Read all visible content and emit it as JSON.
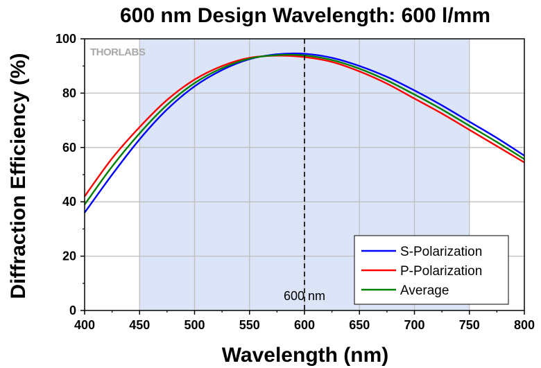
{
  "chart_data": {
    "type": "line",
    "title": "600 nm Design Wavelength: 600 l/mm",
    "xlabel": "Wavelength (nm)",
    "ylabel": "Diffraction Efficiency (%)",
    "xlim": [
      400,
      800
    ],
    "ylim": [
      0,
      100
    ],
    "xticks": [
      400,
      450,
      500,
      550,
      600,
      650,
      700,
      750,
      800
    ],
    "yticks": [
      0,
      20,
      40,
      60,
      80,
      100
    ],
    "grid": true,
    "legend_position": "bottom-right",
    "highlight_band": [
      450,
      750
    ],
    "highlight_color": "#dce4f7",
    "design_line": {
      "x": 600,
      "label": "600 nm"
    },
    "logo_text": "THORLABS",
    "x": [
      400,
      425,
      450,
      475,
      500,
      525,
      550,
      575,
      600,
      625,
      650,
      675,
      700,
      725,
      750,
      775,
      800
    ],
    "series": [
      {
        "name": "S-Polarization",
        "color": "#0000ff",
        "values": [
          36,
          50,
          63,
          74,
          82.5,
          88.5,
          92.5,
          94.3,
          94.5,
          93,
          90,
          86,
          81,
          75.5,
          69.5,
          63.5,
          57
        ]
      },
      {
        "name": "P-Polarization",
        "color": "#ff0000",
        "values": [
          42,
          56,
          67.5,
          77.5,
          85,
          90,
          93,
          93.8,
          93.3,
          91.5,
          88,
          83.5,
          78,
          72.5,
          66.5,
          60.5,
          54.5
        ]
      },
      {
        "name": "Average",
        "color": "#008000",
        "values": [
          39,
          53,
          65.2,
          75.7,
          83.7,
          89.2,
          92.7,
          94,
          93.9,
          92.2,
          89,
          84.7,
          79.5,
          74,
          68,
          62,
          55.7
        ]
      }
    ]
  }
}
